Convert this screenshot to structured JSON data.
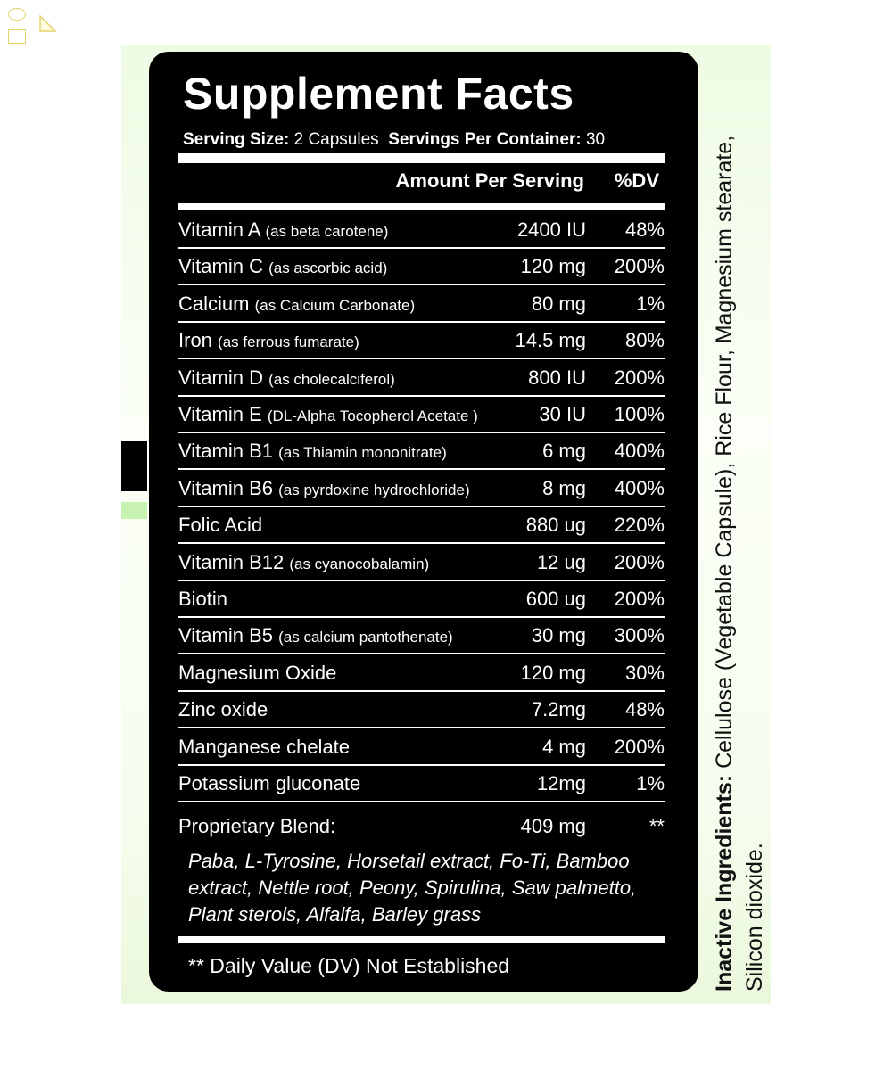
{
  "title": "Supplement Facts",
  "serving": {
    "size_label": "Serving Size:",
    "size_value": "2 Capsules",
    "per_container_label": "Servings Per Container:",
    "per_container_value": "30"
  },
  "headers": {
    "amount": "Amount Per Serving",
    "dv": "%DV"
  },
  "rows": [
    {
      "name": "Vitamin A",
      "note": "(as beta carotene)",
      "amount": "2400 IU",
      "dv": "48%"
    },
    {
      "name": "Vitamin C",
      "note": "(as ascorbic acid)",
      "amount": "120 mg",
      "dv": "200%"
    },
    {
      "name": "Calcium",
      "note": "(as Calcium Carbonate)",
      "amount": "80 mg",
      "dv": "1%"
    },
    {
      "name": "Iron",
      "note": "(as ferrous fumarate)",
      "amount": "14.5 mg",
      "dv": "80%"
    },
    {
      "name": "Vitamin D",
      "note": "(as cholecalciferol)",
      "amount": "800 IU",
      "dv": "200%"
    },
    {
      "name": "Vitamin E",
      "note": "(DL-Alpha Tocopherol Acetate )",
      "amount": "30 IU",
      "dv": "100%"
    },
    {
      "name": "Vitamin B1",
      "note": "(as Thiamin mononitrate)",
      "amount": "6 mg",
      "dv": "400%"
    },
    {
      "name": "Vitamin B6",
      "note": "(as pyrdoxine hydrochloride)",
      "amount": "8 mg",
      "dv": "400%"
    },
    {
      "name": "Folic Acid",
      "note": "",
      "amount": "880 ug",
      "dv": "220%"
    },
    {
      "name": "Vitamin B12",
      "note": "(as cyanocobalamin)",
      "amount": "12 ug",
      "dv": "200%"
    },
    {
      "name": "Biotin",
      "note": "",
      "amount": "600 ug",
      "dv": "200%"
    },
    {
      "name": "Vitamin B5",
      "note": "(as calcium pantothenate)",
      "amount": "30 mg",
      "dv": "300%"
    },
    {
      "name": "Magnesium Oxide",
      "note": "",
      "amount": "120 mg",
      "dv": "30%"
    },
    {
      "name": "Zinc oxide",
      "note": "",
      "amount": "7.2mg",
      "dv": "48%"
    },
    {
      "name": "Manganese chelate",
      "note": "",
      "amount": "4 mg",
      "dv": "200%"
    },
    {
      "name": "Potassium gluconate",
      "note": "",
      "amount": "12mg",
      "dv": "1%"
    }
  ],
  "blend": {
    "name": "Proprietary Blend:",
    "amount": "409 mg",
    "dv": "**",
    "ingredients": "Paba, L-Tyrosine, Horsetail extract, Fo-Ti, Bamboo extract, Nettle root, Peony, Spirulina, Saw palmetto, Plant sterols, Alfalfa, Barley grass"
  },
  "footnote": "** Daily Value (DV) Not Established",
  "inactive": {
    "label": "Inactive Ingredients:",
    "text": " Cellulose (Vegetable Capsule), Rice Flour, Magnesium stearate, Silicon dioxide."
  },
  "colors": {
    "label_bg": "#000000",
    "text": "#ffffff",
    "page_bg": "#f3fce9"
  }
}
